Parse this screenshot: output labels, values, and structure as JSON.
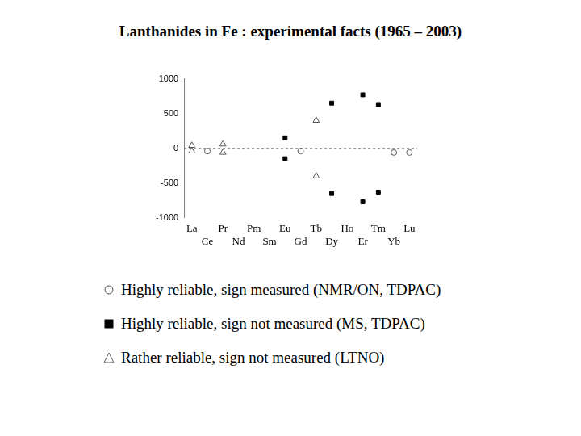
{
  "chart_data": {
    "type": "scatter",
    "title": "Lanthanides in Fe : experimental facts (1965 – 2003)",
    "categories": [
      "La",
      "Ce",
      "Pr",
      "Nd",
      "Pm",
      "Sm",
      "Eu",
      "Gd",
      "Tb",
      "Dy",
      "Ho",
      "Er",
      "Tm",
      "Yb",
      "Lu"
    ],
    "ylim": [
      -1000,
      1000
    ],
    "yticks": [
      -1000,
      -500,
      0,
      500,
      1000
    ],
    "grid": false,
    "series": [
      {
        "name": "Highly reliable, sign measured (NMR/ON, TDPAC)",
        "marker": "circle",
        "color": "#555555",
        "x": [
          "Ce",
          "Gd",
          "Yb",
          "Lu"
        ],
        "values": [
          -40,
          -40,
          -60,
          -60
        ]
      },
      {
        "name": "Highly reliable, sign not measured (MS, TDPAC)",
        "marker": "square",
        "color": "#000000",
        "x": [
          "Eu",
          "Eu",
          "Dy",
          "Dy",
          "Er",
          "Er",
          "Tm",
          "Tm"
        ],
        "values": [
          150,
          -150,
          650,
          -650,
          770,
          -770,
          630,
          -630
        ]
      },
      {
        "name": "Rather reliable, sign not measured (LTNO)",
        "marker": "triangle",
        "color": "#555555",
        "x": [
          "La",
          "La",
          "Pr",
          "Pr",
          "Tb",
          "Tb"
        ],
        "values": [
          40,
          -40,
          60,
          -60,
          400,
          -400
        ]
      }
    ]
  }
}
